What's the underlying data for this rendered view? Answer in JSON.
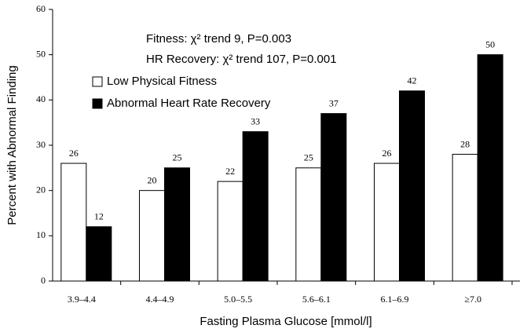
{
  "chart_data": {
    "type": "bar",
    "annotations": [
      "Fitness: χ² trend 9, P=0.003",
      "HR Recovery: χ² trend 107, P=0.001"
    ],
    "x_label": "Fasting Plasma Glucose [mmol/l]",
    "y_label": "Percent with Abnormal Finding",
    "categories": [
      "3.9–4.4",
      "4.4–4.9",
      "5.0–5.5",
      "5.6–6.1",
      "6.1–6.9",
      "≥7.0"
    ],
    "series": [
      {
        "name": "Low Physical Fitness",
        "color": "#ffffff",
        "values": [
          26,
          20,
          22,
          25,
          26,
          28
        ]
      },
      {
        "name": "Abnormal Heart Rate Recovery",
        "color": "#000000",
        "values": [
          12,
          25,
          33,
          37,
          42,
          50
        ]
      }
    ],
    "ylim": [
      0,
      60
    ],
    "yticks": [
      0,
      10,
      20,
      30,
      40,
      50,
      60
    ],
    "legend": "upper left"
  }
}
